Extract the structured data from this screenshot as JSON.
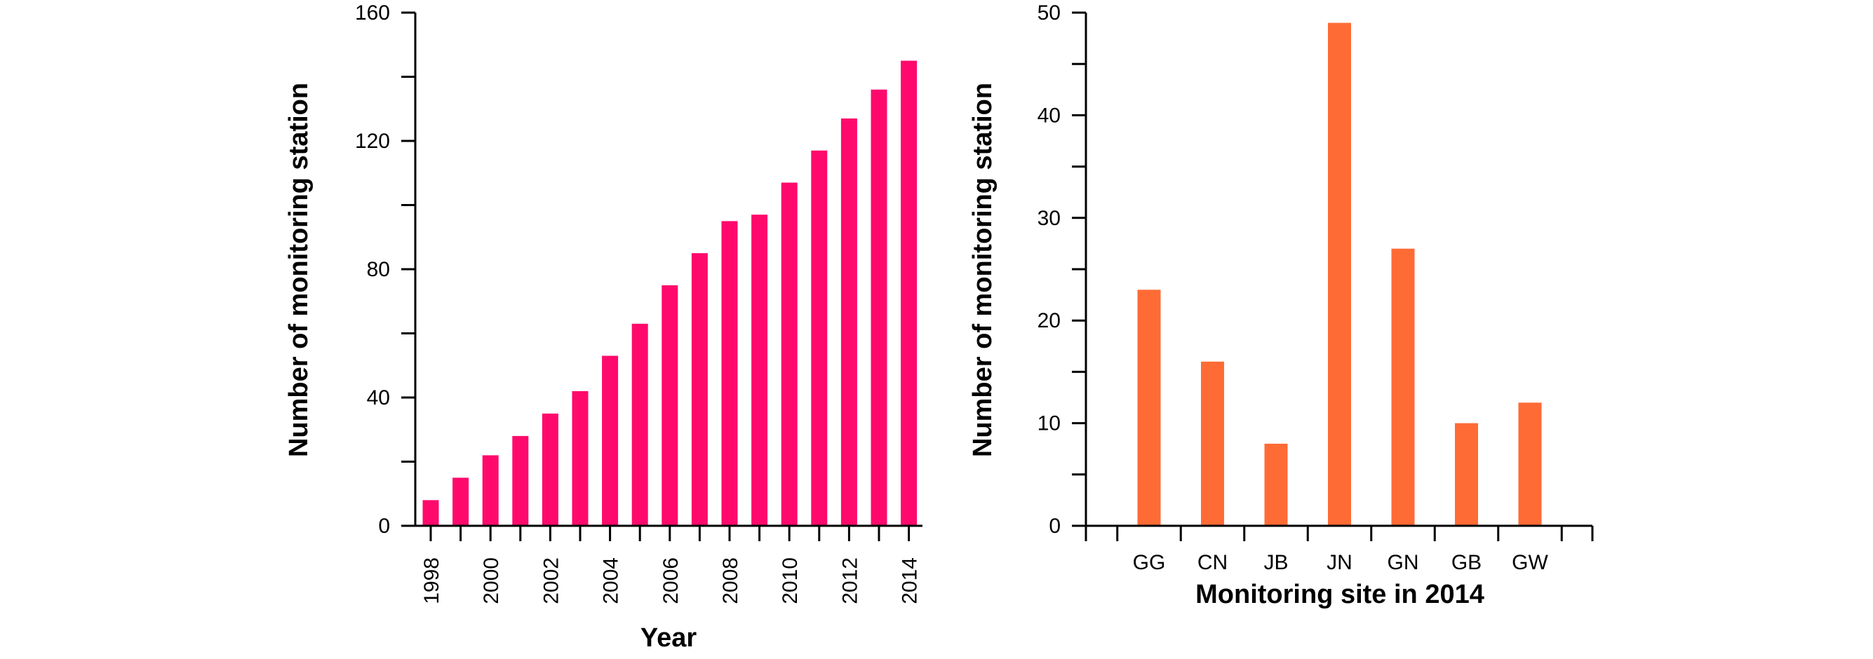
{
  "chart_data": [
    {
      "type": "bar",
      "title": "",
      "xlabel": "Year",
      "ylabel": "Number of monitoring station",
      "ylim": [
        0,
        160
      ],
      "y_ticks": [
        "0",
        "40",
        "80",
        "120",
        "160"
      ],
      "y_minor_step": 20,
      "categories": [
        "1998",
        "1999",
        "2000",
        "2001",
        "2002",
        "2003",
        "2004",
        "2005",
        "2006",
        "2007",
        "2008",
        "2009",
        "2010",
        "2011",
        "2012",
        "2013",
        "2014"
      ],
      "x_tick_labels": [
        "1998",
        "2000",
        "2002",
        "2004",
        "2006",
        "2008",
        "2010",
        "2012",
        "2014"
      ],
      "values": [
        8,
        15,
        22,
        28,
        35,
        42,
        53,
        63,
        75,
        85,
        95,
        97,
        107,
        117,
        127,
        136,
        145
      ],
      "bar_color": "#ff0a6c",
      "grid": false,
      "legend": "none"
    },
    {
      "type": "bar",
      "title": "",
      "xlabel": "Monitoring site in 2014",
      "ylabel": "Number of monitoring station",
      "ylim": [
        0,
        50
      ],
      "y_ticks": [
        "0",
        "10",
        "20",
        "30",
        "40",
        "50"
      ],
      "y_minor_step": 5,
      "categories": [
        "GG",
        "CN",
        "JB",
        "JN",
        "GN",
        "GB",
        "GW"
      ],
      "values": [
        23,
        16,
        8,
        49,
        27,
        10,
        12
      ],
      "bar_color": "#ff6b35",
      "grid": false,
      "legend": "none"
    }
  ]
}
